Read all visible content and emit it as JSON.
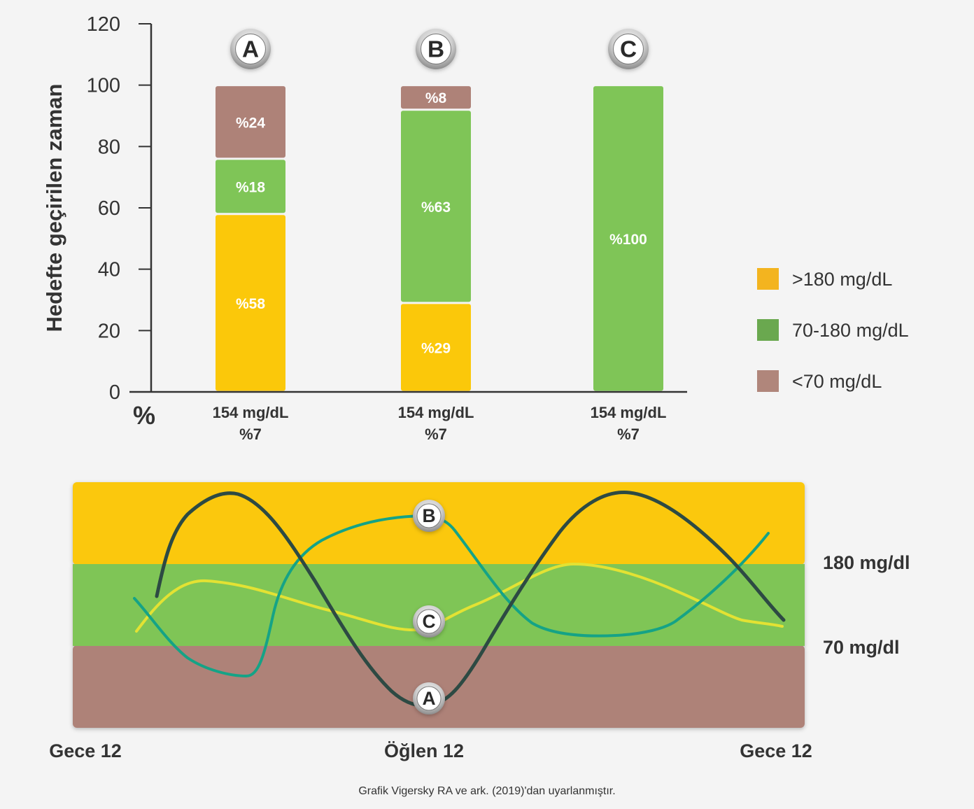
{
  "colors": {
    "high": "#fbc80a",
    "in_range": "#7fc557",
    "low": "#ae8278",
    "legend_high": "#f3b41f",
    "legend_in_range": "#6aa84f",
    "legend_low": "#b0867b",
    "line_a": "#2d4a43",
    "line_b": "#15a386",
    "line_c": "#e3e233",
    "axis": "#333333",
    "text": "#333333"
  },
  "chart_data": [
    {
      "type": "bar",
      "stacked": true,
      "ylabel": "Hedefte geçirilen zaman",
      "unit_label": "%",
      "ylim": [
        0,
        120
      ],
      "yticks": [
        "0",
        "20",
        "40",
        "60",
        "80",
        "100",
        "120"
      ],
      "categories": [
        "A",
        "B",
        "C"
      ],
      "category_values": [
        {
          "mean": "154 mg/dL",
          "pct": "%7"
        },
        {
          "mean": "154 mg/dL",
          "pct": "%7"
        },
        {
          "mean": "154 mg/dL",
          "pct": "%7"
        }
      ],
      "series": [
        {
          "name": ">180 mg/dL",
          "key": "high",
          "values": [
            58,
            29,
            0
          ],
          "labels": [
            "%58",
            "%29",
            ""
          ]
        },
        {
          "name": "70-180 mg/dL",
          "key": "in_range",
          "values": [
            18,
            63,
            100
          ],
          "labels": [
            "%18",
            "%63",
            "%100"
          ]
        },
        {
          "name": "<70 mg/dL",
          "key": "low",
          "values": [
            24,
            8,
            0
          ],
          "labels": [
            "%24",
            "%8",
            ""
          ]
        }
      ],
      "legend_position": "right"
    },
    {
      "type": "line",
      "x_labels": [
        "Gece 12",
        "Öğlen 12",
        "Gece 12"
      ],
      "thresholds": [
        "180 mg/dl",
        "70 mg/dl"
      ],
      "series": [
        {
          "name": "A",
          "key": "line_a"
        },
        {
          "name": "B",
          "key": "line_b"
        },
        {
          "name": "C",
          "key": "line_c"
        }
      ]
    }
  ],
  "caption": "Grafik Vigersky RA ve ark. (2019)'dan uyarlanmıştır."
}
